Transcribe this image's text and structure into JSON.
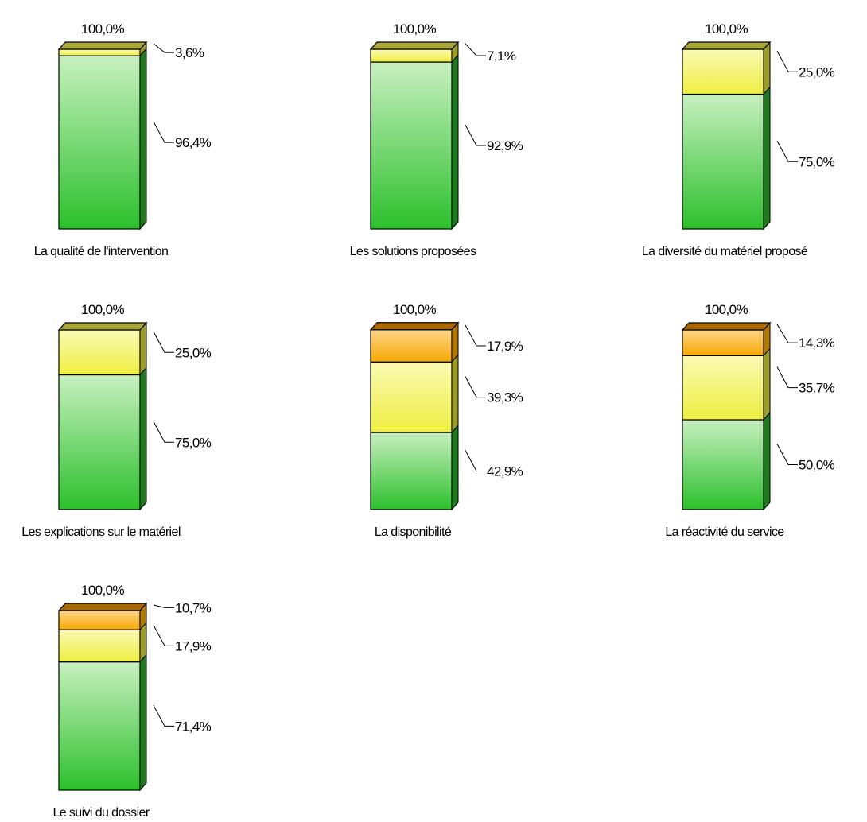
{
  "chart_data": [
    {
      "type": "bar",
      "category": "La qualité de l'intervention",
      "total_label": "100,0%",
      "segments": [
        {
          "level": "bottom",
          "value": 96.4,
          "label": "96,4%"
        },
        {
          "level": "middle",
          "value": 3.6,
          "label": "3,6%"
        }
      ]
    },
    {
      "type": "bar",
      "category": "Les solutions proposées",
      "total_label": "100,0%",
      "segments": [
        {
          "level": "bottom",
          "value": 92.9,
          "label": "92,9%"
        },
        {
          "level": "middle",
          "value": 7.1,
          "label": "7,1%"
        }
      ]
    },
    {
      "type": "bar",
      "category": "La diversité du matériel proposé",
      "total_label": "100,0%",
      "segments": [
        {
          "level": "bottom",
          "value": 75.0,
          "label": "75,0%"
        },
        {
          "level": "middle",
          "value": 25.0,
          "label": "25,0%"
        }
      ]
    },
    {
      "type": "bar",
      "category": "Les explications sur le matériel",
      "total_label": "100,0%",
      "segments": [
        {
          "level": "bottom",
          "value": 75.0,
          "label": "75,0%"
        },
        {
          "level": "middle",
          "value": 25.0,
          "label": "25,0%"
        }
      ]
    },
    {
      "type": "bar",
      "category": "La disponibilité",
      "total_label": "100,0%",
      "segments": [
        {
          "level": "bottom",
          "value": 42.9,
          "label": "42,9%"
        },
        {
          "level": "middle",
          "value": 39.3,
          "label": "39,3%"
        },
        {
          "level": "top",
          "value": 17.9,
          "label": "17,9%"
        }
      ]
    },
    {
      "type": "bar",
      "category": "La réactivité du service",
      "total_label": "100,0%",
      "segments": [
        {
          "level": "bottom",
          "value": 50.0,
          "label": "50,0%"
        },
        {
          "level": "middle",
          "value": 35.7,
          "label": "35,7%"
        },
        {
          "level": "top",
          "value": 14.3,
          "label": "14,3%"
        }
      ]
    },
    {
      "type": "bar",
      "category": "Le suivi du dossier",
      "total_label": "100,0%",
      "segments": [
        {
          "level": "bottom",
          "value": 71.4,
          "label": "71,4%"
        },
        {
          "level": "middle",
          "value": 17.9,
          "label": "17,9%"
        },
        {
          "level": "top",
          "value": 10.7,
          "label": "10,7%"
        }
      ]
    }
  ],
  "colors": {
    "bottom": {
      "light": "#c8f0c0",
      "dark": "#2cc02c",
      "side": "#1f7a1f",
      "top": "#a6a63a"
    },
    "middle": {
      "light": "#fafab4",
      "dark": "#eeee40",
      "side": "#9c9c2a",
      "top": "#a6a63a"
    },
    "top": {
      "light": "#ffd58a",
      "dark": "#f5a800",
      "side": "#b07800",
      "top": "#a86a00"
    }
  }
}
